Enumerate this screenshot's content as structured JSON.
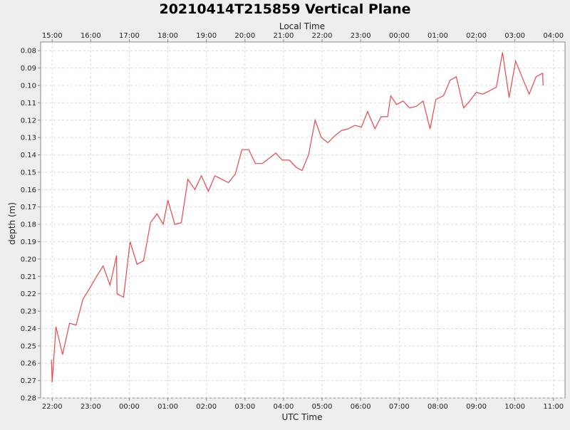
{
  "chart_data": {
    "type": "line",
    "title": "20210414T215859 Vertical Plane",
    "top_axis_label": "Local Time",
    "xlabel": "UTC Time",
    "ylabel": "depth (m)",
    "x_unit": "UTC hours",
    "xlim": [
      21.7,
      35.3
    ],
    "ylim": [
      0.28,
      0.075
    ],
    "y_inverted": true,
    "grid": true,
    "legend": "none",
    "series_color": "#e8474a",
    "x_ticks": [
      {
        "value": 22,
        "label": "22:00"
      },
      {
        "value": 23,
        "label": "23:00"
      },
      {
        "value": 24,
        "label": "00:00"
      },
      {
        "value": 25,
        "label": "01:00"
      },
      {
        "value": 26,
        "label": "02:00"
      },
      {
        "value": 27,
        "label": "03:00"
      },
      {
        "value": 28,
        "label": "04:00"
      },
      {
        "value": 29,
        "label": "05:00"
      },
      {
        "value": 30,
        "label": "06:00"
      },
      {
        "value": 31,
        "label": "07:00"
      },
      {
        "value": 32,
        "label": "08:00"
      },
      {
        "value": 33,
        "label": "09:00"
      },
      {
        "value": 34,
        "label": "10:00"
      },
      {
        "value": 35,
        "label": "11:00"
      }
    ],
    "top_ticks": [
      {
        "value": 22,
        "label": "15:00"
      },
      {
        "value": 23,
        "label": "16:00"
      },
      {
        "value": 24,
        "label": "17:00"
      },
      {
        "value": 25,
        "label": "18:00"
      },
      {
        "value": 26,
        "label": "19:00"
      },
      {
        "value": 27,
        "label": "20:00"
      },
      {
        "value": 28,
        "label": "21:00"
      },
      {
        "value": 29,
        "label": "22:00"
      },
      {
        "value": 30,
        "label": "23:00"
      },
      {
        "value": 31,
        "label": "00:00"
      },
      {
        "value": 32,
        "label": "01:00"
      },
      {
        "value": 33,
        "label": "02:00"
      },
      {
        "value": 34,
        "label": "03:00"
      },
      {
        "value": 35,
        "label": "04:00"
      }
    ],
    "y_ticks": [
      {
        "value": 0.08,
        "label": "0.08"
      },
      {
        "value": 0.09,
        "label": "0.09"
      },
      {
        "value": 0.1,
        "label": "0.10"
      },
      {
        "value": 0.11,
        "label": "0.11"
      },
      {
        "value": 0.12,
        "label": "0.12"
      },
      {
        "value": 0.13,
        "label": "0.13"
      },
      {
        "value": 0.14,
        "label": "0.14"
      },
      {
        "value": 0.15,
        "label": "0.15"
      },
      {
        "value": 0.16,
        "label": "0.16"
      },
      {
        "value": 0.17,
        "label": "0.17"
      },
      {
        "value": 0.18,
        "label": "0.18"
      },
      {
        "value": 0.19,
        "label": "0.19"
      },
      {
        "value": 0.2,
        "label": "0.20"
      },
      {
        "value": 0.21,
        "label": "0.21"
      },
      {
        "value": 0.22,
        "label": "0.22"
      },
      {
        "value": 0.23,
        "label": "0.23"
      },
      {
        "value": 0.24,
        "label": "0.24"
      },
      {
        "value": 0.25,
        "label": "0.25"
      },
      {
        "value": 0.26,
        "label": "0.26"
      },
      {
        "value": 0.27,
        "label": "0.27"
      },
      {
        "value": 0.28,
        "label": "0.28"
      }
    ],
    "series": [
      {
        "x": [
          21.98,
          22.0,
          22.1,
          22.27,
          22.45,
          22.62,
          22.8,
          22.97,
          23.15,
          23.32,
          23.5,
          23.67,
          23.68,
          23.85,
          24.02,
          24.2,
          24.37,
          24.55,
          24.72,
          24.88,
          25.0,
          25.18,
          25.35,
          25.52,
          25.7,
          25.87,
          26.05,
          26.22,
          26.57,
          26.75,
          26.92,
          27.1,
          27.27,
          27.45,
          27.8,
          27.97,
          28.15,
          28.32,
          28.48,
          28.65,
          28.82,
          28.98,
          29.15,
          29.33,
          29.5,
          29.67,
          29.85,
          30.02,
          30.18,
          30.37,
          30.53,
          30.7,
          30.78,
          30.93,
          31.1,
          31.27,
          31.45,
          31.62,
          31.8,
          31.95,
          32.15,
          32.32,
          32.48,
          32.67,
          32.83,
          33.0,
          33.17,
          33.35,
          33.52,
          33.68,
          33.85,
          34.02,
          34.2,
          34.37,
          34.55,
          34.72,
          34.73
        ],
        "y": [
          0.258,
          0.271,
          0.239,
          0.255,
          0.237,
          0.238,
          0.223,
          0.217,
          0.21,
          0.204,
          0.215,
          0.198,
          0.22,
          0.222,
          0.19,
          0.203,
          0.201,
          0.179,
          0.174,
          0.18,
          0.166,
          0.18,
          0.179,
          0.154,
          0.16,
          0.152,
          0.161,
          0.152,
          0.156,
          0.151,
          0.137,
          0.137,
          0.145,
          0.145,
          0.139,
          0.143,
          0.143,
          0.147,
          0.149,
          0.14,
          0.12,
          0.13,
          0.133,
          0.129,
          0.126,
          0.125,
          0.123,
          0.124,
          0.115,
          0.125,
          0.118,
          0.118,
          0.106,
          0.111,
          0.109,
          0.113,
          0.112,
          0.109,
          0.125,
          0.108,
          0.106,
          0.097,
          0.095,
          0.113,
          0.109,
          0.104,
          0.105,
          0.103,
          0.101,
          0.081,
          0.107,
          0.086,
          0.096,
          0.105,
          0.095,
          0.093,
          0.1
        ]
      }
    ]
  }
}
